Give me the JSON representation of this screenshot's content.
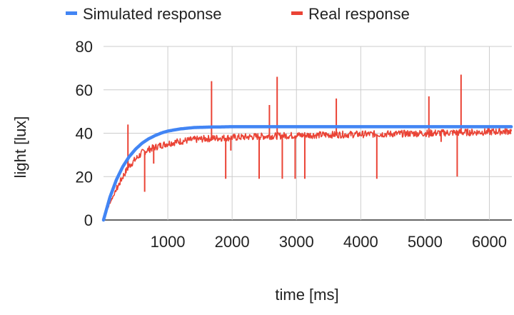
{
  "chart_data": {
    "type": "line",
    "xlabel": "time [ms]",
    "ylabel": "light [lux]",
    "xlim": [
      0,
      6350
    ],
    "ylim": [
      0,
      80
    ],
    "x_ticks": [
      1000,
      2000,
      3000,
      4000,
      5000,
      6000
    ],
    "y_ticks": [
      0,
      20,
      40,
      60,
      80
    ],
    "grid": true,
    "legend_position": "top",
    "series": [
      {
        "name": "Simulated response",
        "color": "#4285f4",
        "x": [
          0,
          100,
          200,
          300,
          400,
          500,
          600,
          700,
          800,
          900,
          1000,
          1200,
          1400,
          1600,
          1800,
          2000,
          2500,
          3000,
          4000,
          5000,
          6000,
          6350
        ],
        "y": [
          0,
          10.5,
          18.5,
          24.6,
          29.2,
          32.7,
          35.4,
          37.4,
          38.9,
          40.1,
          41.0,
          42.0,
          42.6,
          42.8,
          42.9,
          43.0,
          43.0,
          43.0,
          43.0,
          43.0,
          43.0,
          43.0
        ]
      },
      {
        "name": "Real response",
        "color": "#ea4335",
        "x": [
          0,
          100,
          200,
          300,
          400,
          500,
          600,
          700,
          800,
          900,
          1000,
          1200,
          1400,
          1600,
          1800,
          2000,
          2500,
          3000,
          3500,
          4000,
          4500,
          5000,
          5500,
          6000,
          6350
        ],
        "y": [
          0,
          8,
          14,
          20,
          25,
          28,
          31,
          32.5,
          33.5,
          34.5,
          35.3,
          36.3,
          37,
          37.5,
          37.8,
          38,
          38.6,
          39,
          39.3,
          39.5,
          39.7,
          40,
          40.3,
          40.6,
          41
        ],
        "spikes": [
          [
            380,
            44
          ],
          [
            380,
            29
          ],
          [
            640,
            13
          ],
          [
            780,
            26
          ],
          [
            1680,
            64
          ],
          [
            1900,
            19
          ],
          [
            1980,
            32
          ],
          [
            2420,
            19
          ],
          [
            2580,
            53
          ],
          [
            2700,
            66
          ],
          [
            2780,
            19
          ],
          [
            2980,
            19
          ],
          [
            3130,
            19
          ],
          [
            3620,
            56
          ],
          [
            4250,
            19
          ],
          [
            5060,
            57
          ],
          [
            5060,
            38
          ],
          [
            5500,
            20
          ],
          [
            5560,
            67
          ],
          [
            5250,
            36
          ]
        ]
      }
    ]
  }
}
